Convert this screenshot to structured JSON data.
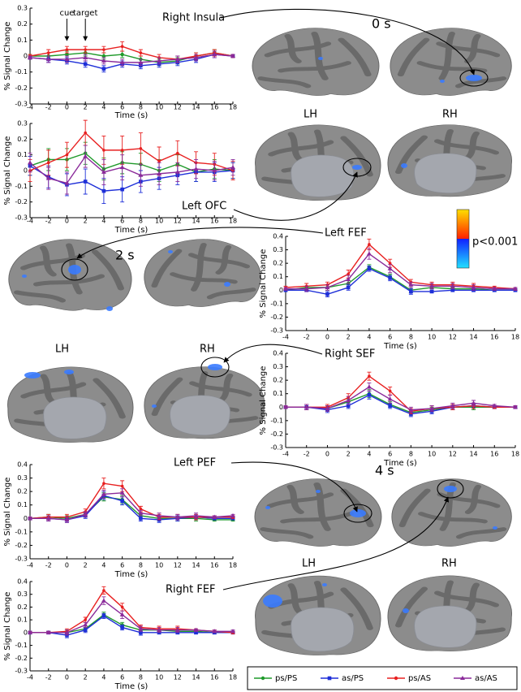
{
  "chart_data": [
    {
      "type": "line",
      "xlabel": "Time (s)",
      "ylabel": "% Signal Change",
      "x": [
        -4,
        -2,
        0,
        2,
        4,
        6,
        8,
        10,
        12,
        14,
        16,
        18
      ],
      "xlim": [
        -4,
        18
      ],
      "xticks": [
        -4,
        -2,
        0,
        2,
        4,
        6,
        8,
        10,
        12,
        14,
        16,
        18
      ],
      "ylim": [
        -0.3,
        0.3
      ],
      "yticks": [
        -0.3,
        -0.2,
        -0.1,
        0,
        0.1,
        0.2,
        0.3
      ],
      "annotations": [
        {
          "text": "cue",
          "x": 0
        },
        {
          "text": "target",
          "x": 2
        }
      ],
      "series": [
        {
          "color": "#1f9a2a",
          "values": [
            0,
            0,
            0.01,
            0.02,
            0,
            0.01,
            -0.02,
            -0.04,
            -0.03,
            0,
            0.02,
            0
          ],
          "errors": [
            0.01,
            0.02,
            0.02,
            0.02,
            0.02,
            0.02,
            0.02,
            0.02,
            0.02,
            0.02,
            0.02,
            0.01
          ]
        },
        {
          "color": "#1e2fd8",
          "values": [
            -0.01,
            -0.02,
            -0.03,
            -0.05,
            -0.08,
            -0.05,
            -0.06,
            -0.05,
            -0.04,
            -0.02,
            0.01,
            0
          ],
          "errors": [
            0.01,
            0.02,
            0.02,
            0.02,
            0.02,
            0.02,
            0.02,
            0.02,
            0.02,
            0.02,
            0.02,
            0.01
          ]
        },
        {
          "color": "#e82020",
          "values": [
            0,
            0.02,
            0.04,
            0.04,
            0.04,
            0.06,
            0.02,
            -0.01,
            -0.02,
            0,
            0.02,
            0
          ],
          "errors": [
            0.01,
            0.02,
            0.02,
            0.02,
            0.02,
            0.03,
            0.02,
            0.02,
            0.02,
            0.02,
            0.02,
            0.01
          ]
        },
        {
          "color": "#8a2a9a",
          "values": [
            -0.01,
            -0.02,
            -0.02,
            -0.01,
            -0.03,
            -0.04,
            -0.04,
            -0.03,
            -0.02,
            -0.01,
            0.01,
            0
          ],
          "errors": [
            0.01,
            0.02,
            0.02,
            0.02,
            0.02,
            0.02,
            0.02,
            0.02,
            0.02,
            0.02,
            0.02,
            0.01
          ]
        }
      ]
    },
    {
      "type": "line",
      "xlabel": "Time (s)",
      "ylabel": "% Signal Change",
      "x": [
        -4,
        -2,
        0,
        2,
        4,
        6,
        8,
        10,
        12,
        14,
        16,
        18
      ],
      "xlim": [
        -4,
        18
      ],
      "xticks": [
        -4,
        -2,
        0,
        2,
        4,
        6,
        8,
        10,
        12,
        14,
        16,
        18
      ],
      "ylim": [
        -0.3,
        0.3
      ],
      "yticks": [
        -0.3,
        -0.2,
        -0.1,
        0,
        0.1,
        0.2,
        0.3
      ],
      "series": [
        {
          "color": "#1f9a2a",
          "values": [
            0.03,
            0.07,
            0.07,
            0.11,
            0.01,
            0.05,
            0.04,
            0,
            0.04,
            -0.01,
            0.01,
            0
          ],
          "errors": [
            0.06,
            0.07,
            0.07,
            0.07,
            0.07,
            0.07,
            0.07,
            0.07,
            0.06,
            0.06,
            0.06,
            0.05
          ]
        },
        {
          "color": "#1e2fd8",
          "values": [
            0.03,
            -0.04,
            -0.09,
            -0.07,
            -0.13,
            -0.12,
            -0.07,
            -0.05,
            -0.03,
            -0.01,
            -0.01,
            0
          ],
          "errors": [
            0.06,
            0.07,
            0.07,
            0.08,
            0.08,
            0.08,
            0.07,
            0.07,
            0.06,
            0.06,
            0.06,
            0.05
          ]
        },
        {
          "color": "#e82020",
          "values": [
            0,
            0.05,
            0.1,
            0.24,
            0.13,
            0.13,
            0.14,
            0.06,
            0.11,
            0.05,
            0.04,
            0
          ],
          "errors": [
            0.07,
            0.08,
            0.08,
            0.08,
            0.09,
            0.09,
            0.1,
            0.09,
            0.08,
            0.07,
            0.07,
            0.06
          ]
        },
        {
          "color": "#8a2a9a",
          "values": [
            0.05,
            -0.05,
            -0.08,
            0.09,
            -0.01,
            0.02,
            -0.03,
            -0.02,
            -0.01,
            0.01,
            0,
            0.02
          ],
          "errors": [
            0.06,
            0.07,
            0.07,
            0.07,
            0.08,
            0.08,
            0.07,
            0.07,
            0.06,
            0.06,
            0.06,
            0.05
          ]
        }
      ]
    },
    {
      "type": "line",
      "xlabel": "Time (s)",
      "ylabel": "% Signal Change",
      "x": [
        -4,
        -2,
        0,
        2,
        4,
        6,
        8,
        10,
        12,
        14,
        16,
        18
      ],
      "xlim": [
        -4,
        18
      ],
      "xticks": [
        -4,
        -2,
        0,
        2,
        4,
        6,
        8,
        10,
        12,
        14,
        16,
        18
      ],
      "ylim": [
        -0.3,
        0.4
      ],
      "yticks": [
        -0.3,
        -0.2,
        -0.1,
        0,
        0.1,
        0.2,
        0.3,
        0.4
      ],
      "series": [
        {
          "color": "#1f9a2a",
          "values": [
            0,
            0.02,
            0.02,
            0.05,
            0.17,
            0.1,
            0,
            0.02,
            0.01,
            0.01,
            0,
            0
          ],
          "errors": [
            0.01,
            0.01,
            0.02,
            0.02,
            0.02,
            0.02,
            0.02,
            0.01,
            0.01,
            0.01,
            0.01,
            0.01
          ]
        },
        {
          "color": "#1e2fd8",
          "values": [
            0,
            0,
            -0.03,
            0.02,
            0.16,
            0.09,
            -0.01,
            -0.01,
            0,
            0,
            0,
            0
          ],
          "errors": [
            0.01,
            0.01,
            0.02,
            0.02,
            0.02,
            0.02,
            0.02,
            0.01,
            0.01,
            0.01,
            0.01,
            0.01
          ]
        },
        {
          "color": "#e82020",
          "values": [
            0.02,
            0.03,
            0.04,
            0.12,
            0.34,
            0.2,
            0.06,
            0.04,
            0.04,
            0.03,
            0.02,
            0.01
          ],
          "errors": [
            0.01,
            0.02,
            0.02,
            0.03,
            0.04,
            0.03,
            0.02,
            0.02,
            0.02,
            0.02,
            0.01,
            0.01
          ]
        },
        {
          "color": "#8a2a9a",
          "values": [
            0.01,
            0.01,
            0.02,
            0.08,
            0.27,
            0.16,
            0.04,
            0.03,
            0.03,
            0.02,
            0.01,
            0.01
          ],
          "errors": [
            0.01,
            0.02,
            0.02,
            0.03,
            0.04,
            0.03,
            0.02,
            0.02,
            0.02,
            0.02,
            0.01,
            0.01
          ]
        }
      ]
    },
    {
      "type": "line",
      "xlabel": "Time (s)",
      "ylabel": "% Signal Change",
      "x": [
        -4,
        -2,
        0,
        2,
        4,
        6,
        8,
        10,
        12,
        14,
        16,
        18
      ],
      "xlim": [
        -4,
        18
      ],
      "xticks": [
        -4,
        -2,
        0,
        2,
        4,
        6,
        8,
        10,
        12,
        14,
        16,
        18
      ],
      "ylim": [
        -0.3,
        0.4
      ],
      "yticks": [
        -0.3,
        -0.2,
        -0.1,
        0,
        0.1,
        0.2,
        0.3,
        0.4
      ],
      "series": [
        {
          "color": "#1f9a2a",
          "values": [
            0,
            0,
            -0.01,
            0.04,
            0.1,
            0.02,
            -0.04,
            -0.02,
            0,
            0,
            0,
            0
          ],
          "errors": [
            0.01,
            0.02,
            0.02,
            0.02,
            0.03,
            0.02,
            0.02,
            0.02,
            0.02,
            0.02,
            0.01,
            0.01
          ]
        },
        {
          "color": "#1e2fd8",
          "values": [
            0,
            0,
            -0.02,
            0.01,
            0.09,
            0.01,
            -0.05,
            -0.03,
            0,
            0.01,
            0,
            0
          ],
          "errors": [
            0.01,
            0.02,
            0.02,
            0.02,
            0.03,
            0.02,
            0.02,
            0.02,
            0.02,
            0.02,
            0.01,
            0.01
          ]
        },
        {
          "color": "#e82020",
          "values": [
            0,
            0,
            0,
            0.07,
            0.23,
            0.12,
            -0.03,
            -0.01,
            0,
            0.01,
            0,
            0
          ],
          "errors": [
            0.01,
            0.02,
            0.02,
            0.03,
            0.03,
            0.03,
            0.02,
            0.02,
            0.02,
            0.02,
            0.01,
            0.01
          ]
        },
        {
          "color": "#8a2a9a",
          "values": [
            0,
            0,
            -0.01,
            0.05,
            0.15,
            0.06,
            -0.02,
            -0.01,
            0.01,
            0.03,
            0.01,
            0
          ],
          "errors": [
            0.01,
            0.02,
            0.02,
            0.03,
            0.03,
            0.03,
            0.02,
            0.02,
            0.02,
            0.02,
            0.01,
            0.01
          ]
        }
      ]
    },
    {
      "type": "line",
      "xlabel": "Time (s)",
      "ylabel": "% Signal Change",
      "x": [
        -4,
        -2,
        0,
        2,
        4,
        6,
        8,
        10,
        12,
        14,
        16,
        18
      ],
      "xlim": [
        -4,
        18
      ],
      "xticks": [
        -4,
        -2,
        0,
        2,
        4,
        6,
        8,
        10,
        12,
        14,
        16,
        18
      ],
      "ylim": [
        -0.3,
        0.4
      ],
      "yticks": [
        -0.3,
        -0.2,
        -0.1,
        0,
        0.1,
        0.2,
        0.3,
        0.4
      ],
      "series": [
        {
          "color": "#1f9a2a",
          "values": [
            0,
            0.01,
            0,
            0.03,
            0.16,
            0.14,
            0.02,
            0,
            0,
            0,
            -0.01,
            -0.01
          ],
          "errors": [
            0.01,
            0.02,
            0.02,
            0.02,
            0.03,
            0.03,
            0.02,
            0.02,
            0.02,
            0.02,
            0.01,
            0.01
          ]
        },
        {
          "color": "#1e2fd8",
          "values": [
            0,
            0,
            -0.01,
            0.02,
            0.17,
            0.13,
            0,
            -0.01,
            0,
            0.01,
            0,
            0
          ],
          "errors": [
            0.01,
            0.02,
            0.02,
            0.02,
            0.03,
            0.03,
            0.02,
            0.02,
            0.02,
            0.02,
            0.01,
            0.01
          ]
        },
        {
          "color": "#e82020",
          "values": [
            0,
            0.01,
            0.01,
            0.05,
            0.26,
            0.24,
            0.07,
            0.01,
            0.01,
            0.01,
            0.01,
            0.01
          ],
          "errors": [
            0.01,
            0.02,
            0.02,
            0.02,
            0.04,
            0.04,
            0.02,
            0.02,
            0.02,
            0.02,
            0.01,
            0.01
          ]
        },
        {
          "color": "#8a2a9a",
          "values": [
            0,
            0,
            -0.01,
            0.03,
            0.18,
            0.19,
            0.04,
            0.02,
            0.01,
            0.02,
            0.01,
            0.02
          ],
          "errors": [
            0.01,
            0.02,
            0.02,
            0.02,
            0.03,
            0.03,
            0.02,
            0.02,
            0.02,
            0.02,
            0.01,
            0.01
          ]
        }
      ]
    },
    {
      "type": "line",
      "xlabel": "Time (s)",
      "ylabel": "% Signal Change",
      "x": [
        -4,
        -2,
        0,
        2,
        4,
        6,
        8,
        10,
        12,
        14,
        16,
        18
      ],
      "xlim": [
        -4,
        18
      ],
      "xticks": [
        -4,
        -2,
        0,
        2,
        4,
        6,
        8,
        10,
        12,
        14,
        16,
        18
      ],
      "ylim": [
        -0.3,
        0.4
      ],
      "yticks": [
        -0.3,
        -0.2,
        -0.1,
        0,
        0.1,
        0.2,
        0.3,
        0.4
      ],
      "series": [
        {
          "name": "ps/PS",
          "color": "#1f9a2a",
          "values": [
            0,
            0,
            0,
            0.03,
            0.14,
            0.06,
            0.02,
            0.02,
            0.01,
            0.01,
            0,
            0
          ],
          "errors": [
            0.01,
            0.01,
            0.02,
            0.02,
            0.02,
            0.02,
            0.02,
            0.01,
            0.01,
            0.01,
            0.01,
            0.01
          ]
        },
        {
          "name": "as/PS",
          "color": "#1e2fd8",
          "values": [
            0,
            0,
            -0.02,
            0.02,
            0.13,
            0.04,
            0,
            0,
            0,
            0,
            0,
            0
          ],
          "errors": [
            0.01,
            0.01,
            0.02,
            0.02,
            0.02,
            0.02,
            0.02,
            0.01,
            0.01,
            0.01,
            0.01,
            0.01
          ]
        },
        {
          "name": "ps/AS",
          "color": "#e82020",
          "values": [
            0,
            0,
            0.01,
            0.1,
            0.33,
            0.2,
            0.04,
            0.03,
            0.03,
            0.02,
            0.01,
            0
          ],
          "errors": [
            0.01,
            0.01,
            0.02,
            0.02,
            0.03,
            0.03,
            0.02,
            0.02,
            0.02,
            0.01,
            0.01,
            0.01
          ]
        },
        {
          "name": "as/AS",
          "color": "#8a2a9a",
          "values": [
            0,
            0,
            0,
            0.06,
            0.25,
            0.14,
            0.03,
            0.02,
            0.02,
            0.02,
            0.01,
            0.01
          ],
          "errors": [
            0.01,
            0.01,
            0.02,
            0.02,
            0.03,
            0.03,
            0.02,
            0.02,
            0.02,
            0.01,
            0.01,
            0.01
          ]
        }
      ]
    }
  ],
  "brain_labels": {
    "right_insula": "Right Insula",
    "time_0": "0 s",
    "lh_0": "LH",
    "rh_0": "RH",
    "left_ofc": "Left OFC",
    "threshold": "p<0.001",
    "left_fef": "Left FEF",
    "time_2": "2 s",
    "lh_2": "LH",
    "rh_2": "RH",
    "right_sef": "Right SEF",
    "left_pef": "Left PEF",
    "time_4": "4 s",
    "lh_4": "LH",
    "rh_4": "RH",
    "right_fef": "Right FEF"
  }
}
